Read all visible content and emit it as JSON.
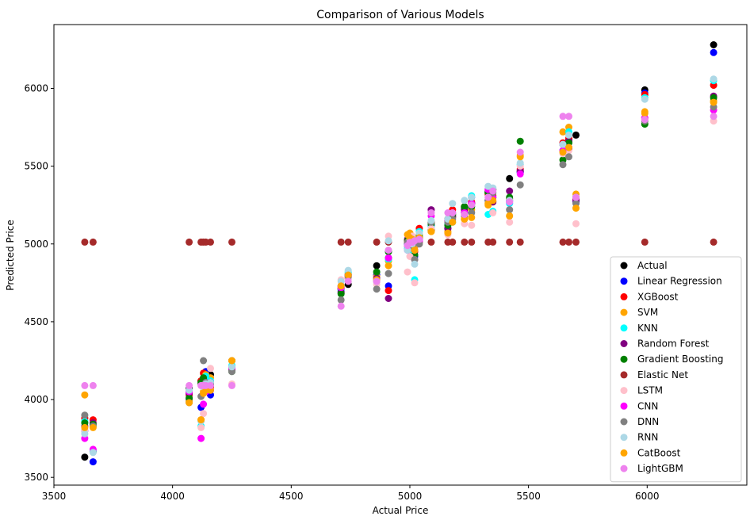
{
  "chart_data": {
    "type": "scatter",
    "title": "Comparison of Various Models",
    "xlabel": "Actual Price",
    "ylabel": "Predicted Price",
    "xlim": [
      3500,
      6420
    ],
    "ylim": [
      3450,
      6410
    ],
    "xticks": [
      3500,
      4000,
      4500,
      5000,
      5500,
      6000
    ],
    "yticks": [
      3500,
      4000,
      4500,
      5000,
      5500,
      6000
    ],
    "grid": false,
    "legend_position": "lower-right",
    "x": [
      3630,
      3665,
      4070,
      4120,
      4130,
      4140,
      4160,
      4250,
      4710,
      4740,
      4860,
      4910,
      4990,
      5000,
      5010,
      5020,
      5040,
      5090,
      5160,
      5180,
      5230,
      5260,
      5330,
      5350,
      5420,
      5465,
      5645,
      5670,
      5700,
      5990,
      6280
    ],
    "series": [
      {
        "name": "Actual",
        "color": "#000000",
        "values": [
          3630,
          3665,
          4070,
          4120,
          4130,
          4140,
          4160,
          4250,
          4710,
          4740,
          4860,
          4910,
          4990,
          5000,
          5010,
          5020,
          5040,
          5090,
          5160,
          5180,
          5230,
          5260,
          5330,
          5350,
          5420,
          5465,
          5645,
          5670,
          5700,
          5990,
          6280
        ]
      },
      {
        "name": "Linear Regression",
        "color": "#0000ff",
        "values": [
          3800,
          3600,
          4000,
          3950,
          4090,
          4180,
          4030,
          4210,
          4730,
          4800,
          4800,
          4730,
          5000,
          4980,
          4960,
          4920,
          5030,
          5120,
          5100,
          5170,
          5200,
          5300,
          5280,
          5300,
          5280,
          5460,
          5600,
          5610,
          5270,
          5970,
          6230
        ]
      },
      {
        "name": "XGBoost",
        "color": "#ff0000",
        "values": [
          3880,
          3870,
          4030,
          4120,
          4170,
          4090,
          4080,
          4200,
          4710,
          4790,
          4760,
          4700,
          5010,
          4990,
          4960,
          4950,
          5100,
          5140,
          5150,
          5220,
          5240,
          5270,
          5320,
          5310,
          5290,
          5480,
          5650,
          5680,
          5290,
          5960,
          6020
        ]
      },
      {
        "name": "SVM",
        "color": "#ffa500",
        "values": [
          4030,
          3830,
          3990,
          3870,
          4050,
          4160,
          4140,
          4250,
          4720,
          4810,
          4790,
          4890,
          5020,
          5070,
          5040,
          4980,
          5060,
          5080,
          5080,
          5170,
          5160,
          5220,
          5250,
          5270,
          5180,
          5570,
          5720,
          5750,
          5320,
          5850,
          5920
        ]
      },
      {
        "name": "KNN",
        "color": "#00ffff",
        "values": [
          3860,
          3670,
          4050,
          3830,
          4100,
          4150,
          4120,
          4220,
          4700,
          4820,
          4770,
          4900,
          4970,
          5010,
          4950,
          4770,
          5080,
          5110,
          5130,
          5140,
          5230,
          5310,
          5190,
          5210,
          5260,
          5510,
          5600,
          5720,
          5300,
          5940,
          6050
        ]
      },
      {
        "name": "Random Forest",
        "color": "#800080",
        "values": [
          3830,
          3850,
          4040,
          4100,
          4130,
          4080,
          4110,
          4190,
          4690,
          4780,
          4780,
          4650,
          5030,
          5000,
          4990,
          4900,
          5040,
          5220,
          5100,
          5180,
          5220,
          5260,
          5340,
          5270,
          5340,
          5470,
          5640,
          5660,
          5280,
          5810,
          5950
        ]
      },
      {
        "name": "Gradient Boosting",
        "color": "#008000",
        "values": [
          3850,
          3840,
          4010,
          4110,
          4140,
          4100,
          4100,
          4180,
          4680,
          4800,
          4820,
          4950,
          5020,
          4990,
          5000,
          4930,
          5050,
          5130,
          5120,
          5190,
          5240,
          5240,
          5330,
          5300,
          5300,
          5660,
          5540,
          5650,
          5300,
          5770,
          5940
        ]
      },
      {
        "name": "Elastic Net",
        "color": "#a52a2a",
        "values": [
          5012,
          5012,
          5012,
          5012,
          5012,
          5012,
          5012,
          5012,
          5012,
          5012,
          5012,
          5012,
          5012,
          5012,
          5012,
          5012,
          5012,
          5012,
          5012,
          5012,
          5012,
          5012,
          5012,
          5012,
          5012,
          5012,
          5012,
          5012,
          5012,
          5012,
          5012
        ]
      },
      {
        "name": "LSTM",
        "color": "#ffc0cb",
        "values": [
          3800,
          3680,
          4060,
          3820,
          3910,
          4060,
          4200,
          4100,
          4770,
          4780,
          4740,
          5050,
          4820,
          4920,
          5050,
          4750,
          5000,
          5100,
          5060,
          5150,
          5130,
          5120,
          5300,
          5200,
          5140,
          5500,
          5580,
          5600,
          5130,
          5800,
          5790
        ]
      },
      {
        "name": "CNN",
        "color": "#ff00ff",
        "values": [
          3750,
          3680,
          4050,
          3750,
          3970,
          4050,
          4060,
          4200,
          4720,
          4800,
          4760,
          4910,
          4960,
          4990,
          5010,
          4960,
          5020,
          5180,
          5150,
          5200,
          5200,
          5260,
          5350,
          5300,
          5270,
          5450,
          5600,
          5620,
          5300,
          5810,
          5860
        ]
      },
      {
        "name": "DNN",
        "color": "#808080",
        "values": [
          3900,
          3830,
          3980,
          4020,
          4250,
          4110,
          4090,
          4180,
          4640,
          4790,
          4710,
          4810,
          5010,
          4990,
          4980,
          4900,
          5000,
          5140,
          5140,
          5160,
          5180,
          5200,
          5280,
          5330,
          5220,
          5380,
          5510,
          5560,
          5260,
          5790,
          5880
        ]
      },
      {
        "name": "RNN",
        "color": "#add8e6",
        "values": [
          3780,
          3660,
          4060,
          3860,
          4080,
          4100,
          4110,
          4210,
          4760,
          4830,
          4760,
          5020,
          4960,
          5030,
          5000,
          4870,
          5070,
          5150,
          5160,
          5260,
          5280,
          5300,
          5370,
          5360,
          5280,
          5520,
          5640,
          5700,
          5300,
          5930,
          6060
        ]
      },
      {
        "name": "CatBoost",
        "color": "#ffa500",
        "values": [
          3820,
          3820,
          3980,
          3870,
          4040,
          4060,
          4060,
          4250,
          4730,
          4800,
          4770,
          4860,
          5060,
          5040,
          5030,
          4960,
          5040,
          5080,
          5070,
          5140,
          5160,
          5170,
          5260,
          5280,
          5180,
          5560,
          5590,
          5620,
          5230,
          5840,
          5910
        ]
      },
      {
        "name": "LightGBM",
        "color": "#ee82ee",
        "values": [
          4090,
          4090,
          4090,
          4090,
          4090,
          4090,
          4090,
          4090,
          4600,
          4760,
          4760,
          4960,
          4990,
          5010,
          5010,
          5020,
          5030,
          5200,
          5200,
          5200,
          5190,
          5250,
          5300,
          5340,
          5270,
          5590,
          5820,
          5820,
          5300,
          5800,
          5820
        ]
      }
    ]
  }
}
